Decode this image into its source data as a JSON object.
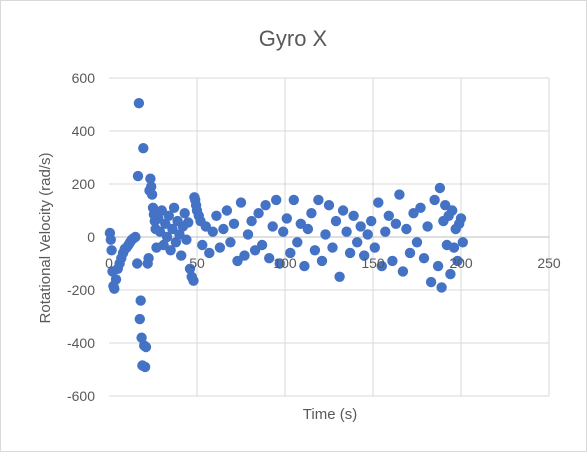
{
  "chart_data": {
    "type": "scatter",
    "title": "Gyro X",
    "xlabel": "Time (s)",
    "ylabel": "Rotational Velocity (rad/s)",
    "xlim": [
      0,
      250
    ],
    "ylim": [
      -600,
      600
    ],
    "x_ticks": [
      0,
      50,
      100,
      150,
      200,
      250
    ],
    "y_ticks": [
      -600,
      -400,
      -200,
      0,
      200,
      400,
      600
    ],
    "x_tick_labels": [
      "0",
      "50",
      "100",
      "150",
      "200",
      "250"
    ],
    "y_tick_labels": [
      "-600",
      "-400",
      "-200",
      "0",
      "200",
      "400",
      "600"
    ],
    "grid": true,
    "legend": "none",
    "marker_color": "#4472c4",
    "points": [
      [
        0.5,
        15
      ],
      [
        1,
        -10
      ],
      [
        1.5,
        -50
      ],
      [
        2,
        -130
      ],
      [
        2.5,
        -185
      ],
      [
        3,
        -195
      ],
      [
        4,
        -160
      ],
      [
        5,
        -120
      ],
      [
        6,
        -100
      ],
      [
        7,
        -80
      ],
      [
        8,
        -60
      ],
      [
        9,
        -45
      ],
      [
        10,
        -40
      ],
      [
        11,
        -30
      ],
      [
        12,
        -20
      ],
      [
        13,
        -10
      ],
      [
        14,
        -5
      ],
      [
        15,
        0
      ],
      [
        16,
        -100
      ],
      [
        16.5,
        230
      ],
      [
        17,
        505
      ],
      [
        17.5,
        -310
      ],
      [
        18,
        -240
      ],
      [
        18.5,
        -380
      ],
      [
        19,
        -485
      ],
      [
        19.5,
        335
      ],
      [
        20,
        -410
      ],
      [
        20.5,
        -490
      ],
      [
        21,
        -415
      ],
      [
        22,
        -100
      ],
      [
        22.5,
        -80
      ],
      [
        23,
        175
      ],
      [
        23.5,
        220
      ],
      [
        24,
        190
      ],
      [
        24.5,
        160
      ],
      [
        25,
        110
      ],
      [
        25.5,
        85
      ],
      [
        26,
        60
      ],
      [
        26.5,
        30
      ],
      [
        27,
        -40
      ],
      [
        28,
        70
      ],
      [
        29,
        20
      ],
      [
        30,
        100
      ],
      [
        31,
        -30
      ],
      [
        32,
        50
      ],
      [
        33,
        0
      ],
      [
        34,
        80
      ],
      [
        35,
        -50
      ],
      [
        36,
        30
      ],
      [
        37,
        110
      ],
      [
        38,
        -20
      ],
      [
        39,
        60
      ],
      [
        40,
        10
      ],
      [
        41,
        -70
      ],
      [
        42,
        40
      ],
      [
        43,
        90
      ],
      [
        44,
        -10
      ],
      [
        45,
        55
      ],
      [
        46,
        -120
      ],
      [
        47,
        -150
      ],
      [
        48,
        -165
      ],
      [
        48.5,
        150
      ],
      [
        49,
        140
      ],
      [
        49.5,
        120
      ],
      [
        50,
        100
      ],
      [
        51,
        80
      ],
      [
        52,
        60
      ],
      [
        53,
        -30
      ],
      [
        55,
        40
      ],
      [
        57,
        -60
      ],
      [
        59,
        20
      ],
      [
        61,
        80
      ],
      [
        63,
        -40
      ],
      [
        65,
        30
      ],
      [
        67,
        100
      ],
      [
        69,
        -20
      ],
      [
        71,
        50
      ],
      [
        73,
        -90
      ],
      [
        75,
        130
      ],
      [
        77,
        -70
      ],
      [
        79,
        10
      ],
      [
        81,
        60
      ],
      [
        83,
        -50
      ],
      [
        85,
        90
      ],
      [
        87,
        -30
      ],
      [
        89,
        120
      ],
      [
        91,
        -80
      ],
      [
        93,
        40
      ],
      [
        95,
        140
      ],
      [
        97,
        -100
      ],
      [
        99,
        20
      ],
      [
        101,
        70
      ],
      [
        103,
        -60
      ],
      [
        105,
        140
      ],
      [
        107,
        -20
      ],
      [
        109,
        50
      ],
      [
        111,
        -110
      ],
      [
        113,
        30
      ],
      [
        115,
        90
      ],
      [
        117,
        -50
      ],
      [
        119,
        140
      ],
      [
        121,
        -90
      ],
      [
        123,
        10
      ],
      [
        125,
        120
      ],
      [
        127,
        -40
      ],
      [
        129,
        60
      ],
      [
        131,
        -150
      ],
      [
        133,
        100
      ],
      [
        135,
        20
      ],
      [
        137,
        -60
      ],
      [
        139,
        80
      ],
      [
        141,
        -20
      ],
      [
        143,
        40
      ],
      [
        145,
        -70
      ],
      [
        147,
        10
      ],
      [
        149,
        60
      ],
      [
        151,
        -40
      ],
      [
        153,
        130
      ],
      [
        155,
        -110
      ],
      [
        157,
        20
      ],
      [
        159,
        80
      ],
      [
        161,
        -90
      ],
      [
        163,
        50
      ],
      [
        165,
        160
      ],
      [
        167,
        -130
      ],
      [
        169,
        30
      ],
      [
        171,
        -60
      ],
      [
        173,
        90
      ],
      [
        175,
        -20
      ],
      [
        177,
        110
      ],
      [
        179,
        -80
      ],
      [
        181,
        40
      ],
      [
        183,
        -170
      ],
      [
        185,
        140
      ],
      [
        187,
        -110
      ],
      [
        188,
        185
      ],
      [
        189,
        -190
      ],
      [
        190,
        60
      ],
      [
        191,
        120
      ],
      [
        192,
        -30
      ],
      [
        193,
        80
      ],
      [
        194,
        -140
      ],
      [
        195,
        100
      ],
      [
        196,
        -40
      ],
      [
        197,
        30
      ],
      [
        198,
        -90
      ],
      [
        199,
        50
      ],
      [
        200,
        70
      ],
      [
        201,
        -20
      ]
    ]
  }
}
